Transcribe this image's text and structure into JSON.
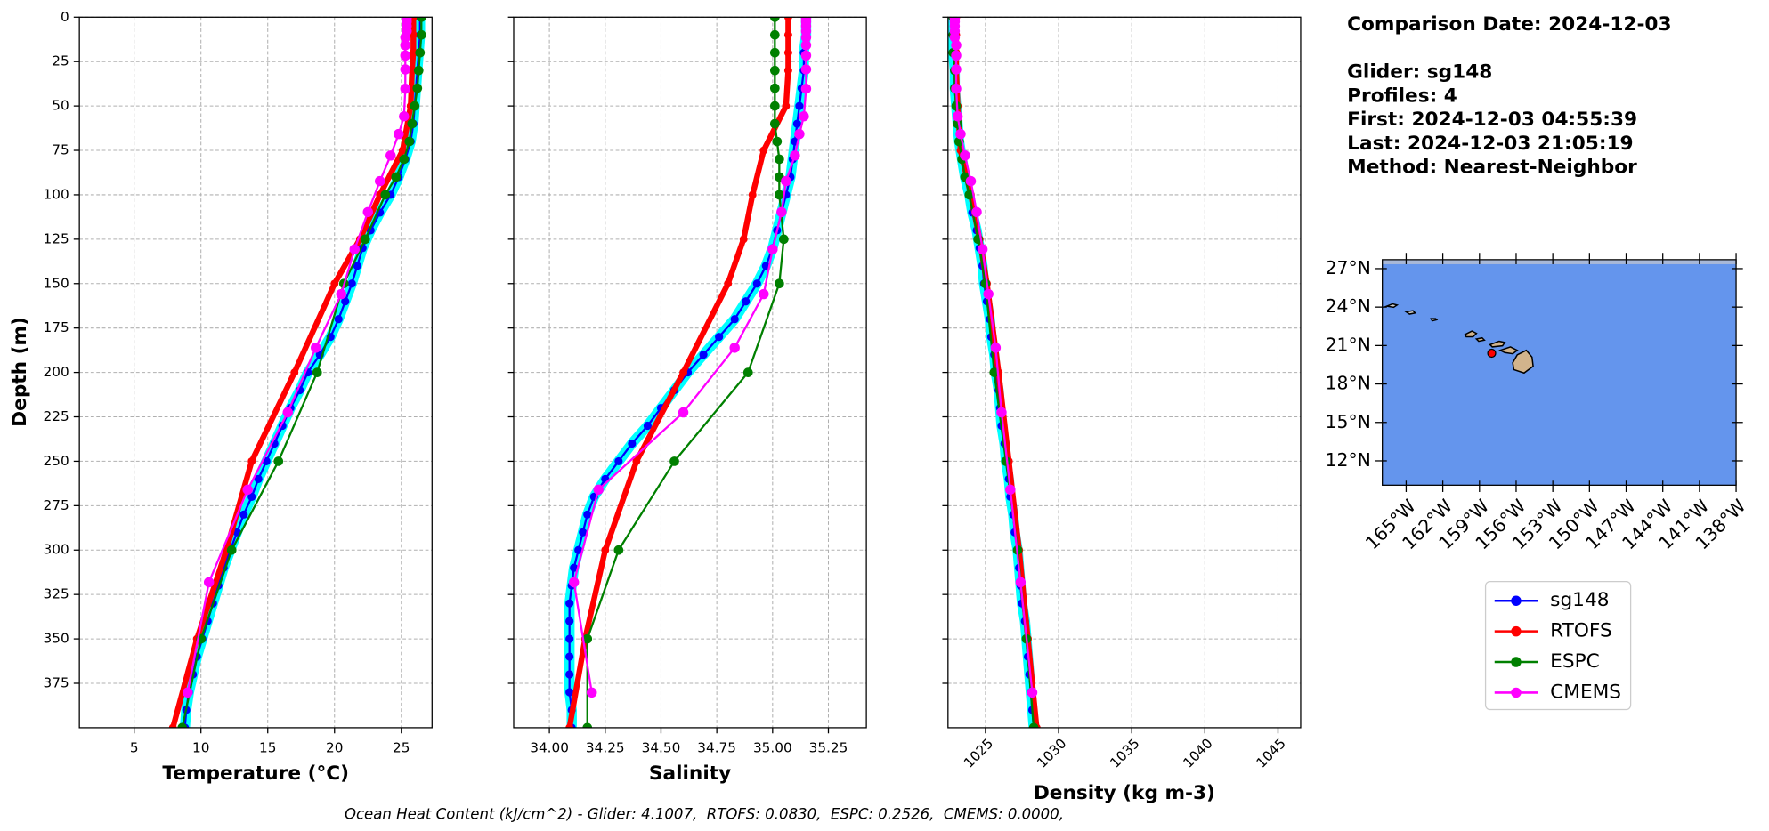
{
  "charts": [
    {
      "type": "line",
      "xlabel": "Temperature (°C)",
      "ylabel": "Depth (m)",
      "show_ytick_labels": true,
      "grid": true,
      "xlim": [
        0.9,
        27.3
      ],
      "ylim": [
        400,
        0
      ],
      "xticks": [
        5,
        10,
        15,
        20,
        25
      ],
      "yticks": [
        0,
        25,
        50,
        75,
        100,
        125,
        150,
        175,
        200,
        225,
        250,
        275,
        300,
        325,
        350,
        375
      ],
      "series": [
        {
          "x": [
            26.4,
            26.4,
            26.3,
            26.2,
            26.1,
            26.0,
            25.9,
            25.7,
            25.3,
            24.8,
            24.2,
            23.4,
            22.7,
            22.1,
            21.7,
            21.3,
            20.8,
            20.3,
            19.7,
            18.9,
            18.0,
            17.4,
            16.7,
            16.1,
            15.5,
            14.9,
            14.3,
            13.8,
            13.2,
            12.7,
            12.2,
            11.7,
            11.3,
            10.9,
            10.5,
            10.1,
            9.7,
            9.4,
            9.1,
            8.9,
            8.8
          ],
          "y": [
            0,
            10,
            20,
            30,
            40,
            50,
            60,
            70,
            80,
            90,
            100,
            110,
            120,
            130,
            140,
            150,
            160,
            170,
            180,
            190,
            200,
            210,
            220,
            230,
            240,
            250,
            260,
            270,
            280,
            290,
            300,
            310,
            320,
            330,
            340,
            350,
            360,
            370,
            380,
            390,
            400
          ]
        },
        {
          "x": [
            25.9,
            25.9,
            25.9,
            25.8,
            25.7,
            25.1,
            23.4,
            21.9,
            20.0,
            17.0,
            13.8,
            11.9,
            9.7,
            7.9
          ],
          "y": [
            0,
            10,
            20,
            30,
            50,
            75,
            100,
            125,
            150,
            200,
            250,
            300,
            350,
            400
          ]
        },
        {
          "x": [
            26.5,
            26.5,
            26.4,
            26.3,
            26.2,
            26.0,
            25.8,
            25.6,
            25.2,
            24.6,
            23.8,
            22.3,
            20.7,
            18.7,
            15.8,
            12.3,
            10.0,
            8.6
          ],
          "y": [
            0,
            10,
            20,
            30,
            40,
            50,
            60,
            70,
            80,
            90,
            100,
            125,
            150,
            200,
            250,
            300,
            350,
            400
          ]
        },
        {
          "x": [
            25.4,
            25.4,
            25.4,
            25.4,
            25.3,
            25.3,
            25.3,
            25.3,
            25.3,
            25.2,
            24.8,
            24.2,
            23.4,
            22.5,
            21.5,
            20.5,
            18.6,
            16.5,
            13.5,
            10.6,
            9.0
          ],
          "y": [
            0.5,
            2.6,
            5,
            7.9,
            11.4,
            15.8,
            21.6,
            29.4,
            40.3,
            55.8,
            65.8,
            77.9,
            92.3,
            109.7,
            130.7,
            155.9,
            186.1,
            222.5,
            266,
            318.1,
            380.2
          ]
        }
      ]
    },
    {
      "type": "line",
      "xlabel": "Salinity",
      "show_ytick_labels": false,
      "grid": true,
      "xlim": [
        33.84,
        35.42
      ],
      "ylim": [
        400,
        0
      ],
      "xticks": [
        {
          "value": 34,
          "label": "34.00"
        },
        34.25,
        {
          "value": 34.5,
          "label": "34.50"
        },
        34.75,
        {
          "value": 35,
          "label": "35.00"
        },
        35.25
      ],
      "yticks": [
        0,
        25,
        50,
        75,
        100,
        125,
        150,
        175,
        200,
        225,
        250,
        275,
        300,
        325,
        350,
        375
      ],
      "series": [
        {
          "x": [
            35.15,
            35.15,
            35.14,
            35.14,
            35.13,
            35.12,
            35.11,
            35.1,
            35.09,
            35.08,
            35.06,
            35.04,
            35.02,
            35.0,
            34.97,
            34.93,
            34.88,
            34.83,
            34.76,
            34.69,
            34.62,
            34.56,
            34.5,
            34.44,
            34.37,
            34.31,
            34.25,
            34.2,
            34.17,
            34.15,
            34.13,
            34.11,
            34.1,
            34.09,
            34.09,
            34.09,
            34.09,
            34.09,
            34.09,
            34.1,
            34.1
          ],
          "y": [
            0,
            10,
            20,
            30,
            40,
            50,
            60,
            70,
            80,
            90,
            100,
            110,
            120,
            130,
            140,
            150,
            160,
            170,
            180,
            190,
            200,
            210,
            220,
            230,
            240,
            250,
            260,
            270,
            280,
            290,
            300,
            310,
            320,
            330,
            340,
            350,
            360,
            370,
            380,
            390,
            400
          ]
        },
        {
          "x": [
            35.07,
            35.07,
            35.07,
            35.07,
            35.06,
            34.96,
            34.91,
            34.87,
            34.8,
            34.6,
            34.39,
            34.25,
            34.16,
            34.09
          ],
          "y": [
            0,
            10,
            20,
            30,
            50,
            75,
            100,
            125,
            150,
            200,
            250,
            300,
            350,
            400
          ]
        },
        {
          "x": [
            35.01,
            35.01,
            35.01,
            35.01,
            35.01,
            35.01,
            35.01,
            35.02,
            35.03,
            35.03,
            35.03,
            35.05,
            35.03,
            34.89,
            34.56,
            34.31,
            34.17,
            34.17
          ],
          "y": [
            0,
            10,
            20,
            30,
            40,
            50,
            60,
            70,
            80,
            90,
            100,
            125,
            150,
            200,
            250,
            300,
            350,
            400
          ]
        },
        {
          "x": [
            35.15,
            35.15,
            35.15,
            35.15,
            35.15,
            35.15,
            35.15,
            35.15,
            35.15,
            35.14,
            35.12,
            35.1,
            35.06,
            35.04,
            35.0,
            34.96,
            34.83,
            34.6,
            34.22,
            34.11,
            34.19
          ],
          "y": [
            0.5,
            2.6,
            5,
            7.9,
            11.4,
            15.8,
            21.6,
            29.4,
            40.3,
            55.8,
            65.8,
            77.9,
            92.3,
            109.7,
            130.7,
            155.9,
            186.1,
            222.5,
            266,
            318.1,
            380.2
          ]
        }
      ]
    },
    {
      "type": "line",
      "xlabel": "Density (kg m-3)",
      "show_ytick_labels": false,
      "grid": true,
      "xtick_rotation": 45,
      "xlim": [
        1022.44,
        1046.55
      ],
      "ylim": [
        400,
        0
      ],
      "xticks": [
        1025,
        1030,
        1035,
        1040,
        1045
      ],
      "yticks": [
        0,
        25,
        50,
        75,
        100,
        125,
        150,
        175,
        200,
        225,
        250,
        275,
        300,
        325,
        350,
        375
      ],
      "series": [
        {
          "x": [
            1022.8,
            1022.8,
            1022.8,
            1022.9,
            1022.9,
            1023.0,
            1023.1,
            1023.2,
            1023.4,
            1023.6,
            1023.9,
            1024.1,
            1024.4,
            1024.6,
            1024.8,
            1024.9,
            1025.1,
            1025.3,
            1025.4,
            1025.6,
            1025.7,
            1025.9,
            1026.0,
            1026.1,
            1026.3,
            1026.4,
            1026.6,
            1026.7,
            1026.9,
            1027.0,
            1027.2,
            1027.3,
            1027.4,
            1027.5,
            1027.7,
            1027.8,
            1027.9,
            1028.0,
            1028.1,
            1028.2,
            1028.3
          ],
          "y": [
            0,
            10,
            20,
            30,
            40,
            50,
            60,
            70,
            80,
            90,
            100,
            110,
            120,
            130,
            140,
            150,
            160,
            170,
            180,
            190,
            200,
            210,
            220,
            230,
            240,
            250,
            260,
            270,
            280,
            290,
            300,
            310,
            320,
            330,
            340,
            350,
            360,
            370,
            380,
            390,
            400
          ]
        },
        {
          "x": [
            1023.0,
            1023.0,
            1023.0,
            1023.0,
            1023.1,
            1023.3,
            1024.0,
            1024.6,
            1025.1,
            1025.9,
            1026.6,
            1027.3,
            1027.9,
            1028.5
          ],
          "y": [
            0,
            10,
            20,
            30,
            50,
            75,
            100,
            125,
            150,
            200,
            250,
            300,
            350,
            400
          ]
        },
        {
          "x": [
            1022.8,
            1022.8,
            1022.8,
            1022.9,
            1022.9,
            1023.0,
            1023.1,
            1023.2,
            1023.4,
            1023.6,
            1023.9,
            1024.5,
            1025.0,
            1025.6,
            1026.4,
            1027.2,
            1027.8,
            1028.3
          ],
          "y": [
            0,
            10,
            20,
            30,
            40,
            50,
            60,
            70,
            80,
            90,
            100,
            125,
            150,
            200,
            250,
            300,
            350,
            400
          ]
        },
        {
          "x": [
            1022.9,
            1022.9,
            1022.9,
            1022.9,
            1022.9,
            1023.0,
            1023.0,
            1023.0,
            1023.0,
            1023.1,
            1023.3,
            1023.6,
            1024.0,
            1024.4,
            1024.8,
            1025.2,
            1025.7,
            1026.1,
            1026.7,
            1027.4,
            1028.2
          ],
          "y": [
            0.5,
            2.6,
            5,
            7.9,
            11.4,
            15.8,
            21.6,
            29.4,
            40.3,
            55.8,
            65.8,
            77.9,
            92.3,
            109.7,
            130.7,
            155.9,
            186.1,
            222.5,
            266,
            318.1,
            380.2
          ]
        }
      ]
    }
  ],
  "legend": {
    "loc": "lower right",
    "series": [
      {
        "name": "sg148",
        "color": "#0000ff"
      },
      {
        "name": "RTOFS",
        "color": "#ff0000"
      },
      {
        "name": "ESPC",
        "color": "#008000"
      },
      {
        "name": "CMEMS",
        "color": "#ff00ff"
      }
    ]
  },
  "info": [
    "Comparison Date: 2024-12-03",
    "Glider: sg148",
    "Profiles: 4",
    "First: 2024-12-03 04:55:39",
    "Last: 2024-12-03 21:05:19",
    "Method: Nearest-Neighbor"
  ],
  "map": {
    "xlim": [
      -166.95,
      -138
    ],
    "ylim": [
      10.1,
      27.7
    ],
    "ocean_color": "#6495ed",
    "xticks": [
      {
        "value": -165,
        "label": "165°W"
      },
      {
        "value": -162,
        "label": "162°W"
      },
      {
        "value": -159,
        "label": "159°W"
      },
      {
        "value": -156,
        "label": "156°W"
      },
      {
        "value": -153,
        "label": "153°W"
      },
      {
        "value": -150,
        "label": "150°W"
      },
      {
        "value": -147,
        "label": "147°W"
      },
      {
        "value": -144,
        "label": "144°W"
      },
      {
        "value": -141,
        "label": "141°W"
      },
      {
        "value": -138,
        "label": "138°W"
      }
    ],
    "yticks": [
      {
        "value": 27,
        "label": "27°N"
      },
      {
        "value": 24,
        "label": "24°N"
      },
      {
        "value": 21,
        "label": "21°N"
      },
      {
        "value": 18,
        "label": "18°N"
      },
      {
        "value": 15,
        "label": "15°N"
      },
      {
        "value": 12,
        "label": "12°N"
      }
    ],
    "glider_position": {
      "lon": -158.0,
      "lat": 20.4
    }
  },
  "footer": "Ocean Heat Content (kJ/cm^2) - Glider: 4.1007,  RTOFS: 0.0830,  ESPC: 0.2526,  CMEMS: 0.0000,"
}
